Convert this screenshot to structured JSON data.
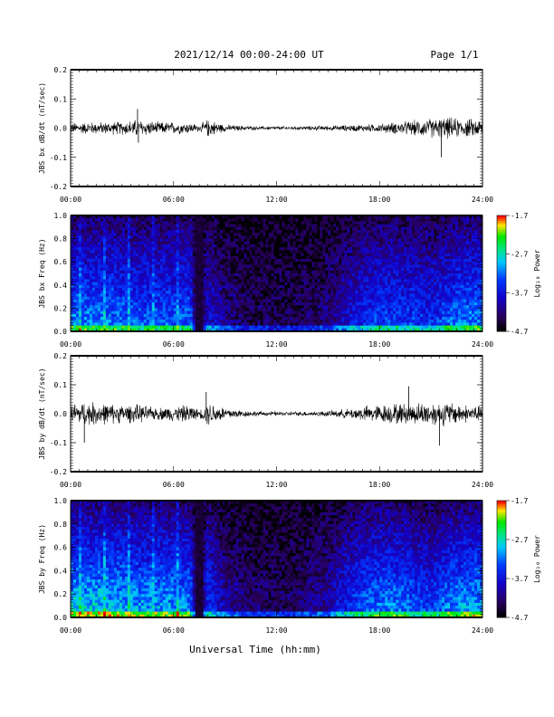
{
  "header": {
    "title": "2021/12/14  00:00-24:00 UT",
    "page": "Page 1/1"
  },
  "footer": {
    "xlabel": "Universal Time (hh:mm)"
  },
  "chart_data": [
    {
      "type": "line",
      "name": "bx",
      "ylabel": "JBS bx dB/dt (nT/sec)",
      "ylim": [
        -0.2,
        0.2
      ],
      "yticks": [
        "0.2",
        "0.1",
        "0.0",
        "-0.1",
        "-0.2"
      ],
      "xlim": [
        0,
        24
      ],
      "xticks": [
        "00:00",
        "06:00",
        "12:00",
        "18:00",
        "24:00"
      ],
      "envelope_hours": [
        0,
        1,
        2,
        3,
        4,
        5,
        6,
        7,
        7.5,
        8,
        9,
        10,
        11,
        12,
        13,
        14,
        15,
        16,
        17,
        18,
        19,
        20,
        21,
        22,
        23,
        24
      ],
      "envelope_amp": [
        0.018,
        0.02,
        0.02,
        0.022,
        0.03,
        0.02,
        0.02,
        0.018,
        0.01,
        0.03,
        0.012,
        0.008,
        0.006,
        0.006,
        0.006,
        0.007,
        0.008,
        0.01,
        0.012,
        0.014,
        0.02,
        0.025,
        0.032,
        0.035,
        0.03,
        0.03
      ],
      "spikes": [
        [
          3.9,
          0.065
        ],
        [
          3.95,
          -0.05
        ],
        [
          11.5,
          -0.005
        ],
        [
          21.6,
          -0.1
        ]
      ]
    },
    {
      "type": "heatmap",
      "name": "bx_spec",
      "ylabel": "JBS bx Freq (Hz)",
      "ylim": [
        0,
        1.0
      ],
      "yticks": [
        "1.0",
        "0.8",
        "0.6",
        "0.4",
        "0.2",
        "0.0"
      ],
      "xticks": [
        "00:00",
        "06:00",
        "12:00",
        "18:00",
        "24:00"
      ],
      "colorbar": {
        "label": "Log₁₀ Power",
        "ticks": [
          "-1.7",
          "-2.7",
          "-3.7",
          "-4.7"
        ],
        "range": [
          -4.7,
          -1.7
        ]
      },
      "activity_hours": [
        0,
        2,
        4,
        6,
        7,
        7.3,
        7.6,
        8,
        9,
        10,
        11,
        12,
        13,
        14,
        15,
        16,
        17,
        18,
        19,
        20,
        21,
        22,
        23,
        24
      ],
      "activity_level": [
        0.55,
        0.55,
        0.5,
        0.5,
        0.5,
        0.1,
        0.1,
        0.35,
        0.2,
        0.15,
        0.12,
        0.12,
        0.12,
        0.15,
        0.2,
        0.3,
        0.4,
        0.45,
        0.45,
        0.45,
        0.4,
        0.5,
        0.55,
        0.55
      ]
    },
    {
      "type": "line",
      "name": "by",
      "ylabel": "JBS by dB/dt (nT/sec)",
      "ylim": [
        -0.2,
        0.2
      ],
      "yticks": [
        "0.2",
        "0.1",
        "0.0",
        "-0.1",
        "-0.2"
      ],
      "xlim": [
        0,
        24
      ],
      "xticks": [
        "00:00",
        "06:00",
        "12:00",
        "18:00",
        "24:00"
      ],
      "envelope_hours": [
        0,
        1,
        2,
        3,
        4,
        5,
        6,
        7,
        7.5,
        8,
        9,
        10,
        11,
        12,
        13,
        14,
        15,
        16,
        17,
        18,
        19,
        20,
        21,
        22,
        23,
        24
      ],
      "envelope_amp": [
        0.035,
        0.04,
        0.035,
        0.03,
        0.03,
        0.02,
        0.025,
        0.03,
        0.012,
        0.04,
        0.022,
        0.012,
        0.008,
        0.007,
        0.007,
        0.008,
        0.01,
        0.015,
        0.025,
        0.03,
        0.035,
        0.035,
        0.04,
        0.04,
        0.03,
        0.025
      ],
      "spikes": [
        [
          0.8,
          -0.1
        ],
        [
          7.9,
          0.075
        ],
        [
          19.7,
          0.095
        ],
        [
          21.5,
          -0.11
        ]
      ]
    },
    {
      "type": "heatmap",
      "name": "by_spec",
      "ylabel": "JBS by Freq (Hz)",
      "ylim": [
        0,
        1.0
      ],
      "yticks": [
        "1.0",
        "0.8",
        "0.6",
        "0.4",
        "0.2",
        "0.0"
      ],
      "xticks": [
        "00:00",
        "06:00",
        "12:00",
        "18:00",
        "24:00"
      ],
      "colorbar": {
        "label": "Log₁₀ Power",
        "ticks": [
          "-1.7",
          "-2.7",
          "-3.7",
          "-4.7"
        ],
        "range": [
          -4.7,
          -1.7
        ]
      },
      "activity_hours": [
        0,
        2,
        4,
        6,
        7,
        7.3,
        7.6,
        8,
        9,
        10,
        11,
        12,
        13,
        14,
        15,
        16,
        17,
        18,
        19,
        20,
        21,
        22,
        23,
        24
      ],
      "activity_level": [
        0.65,
        0.65,
        0.6,
        0.6,
        0.55,
        0.12,
        0.12,
        0.45,
        0.25,
        0.18,
        0.15,
        0.15,
        0.15,
        0.2,
        0.25,
        0.4,
        0.5,
        0.55,
        0.55,
        0.5,
        0.45,
        0.55,
        0.6,
        0.6
      ]
    }
  ]
}
